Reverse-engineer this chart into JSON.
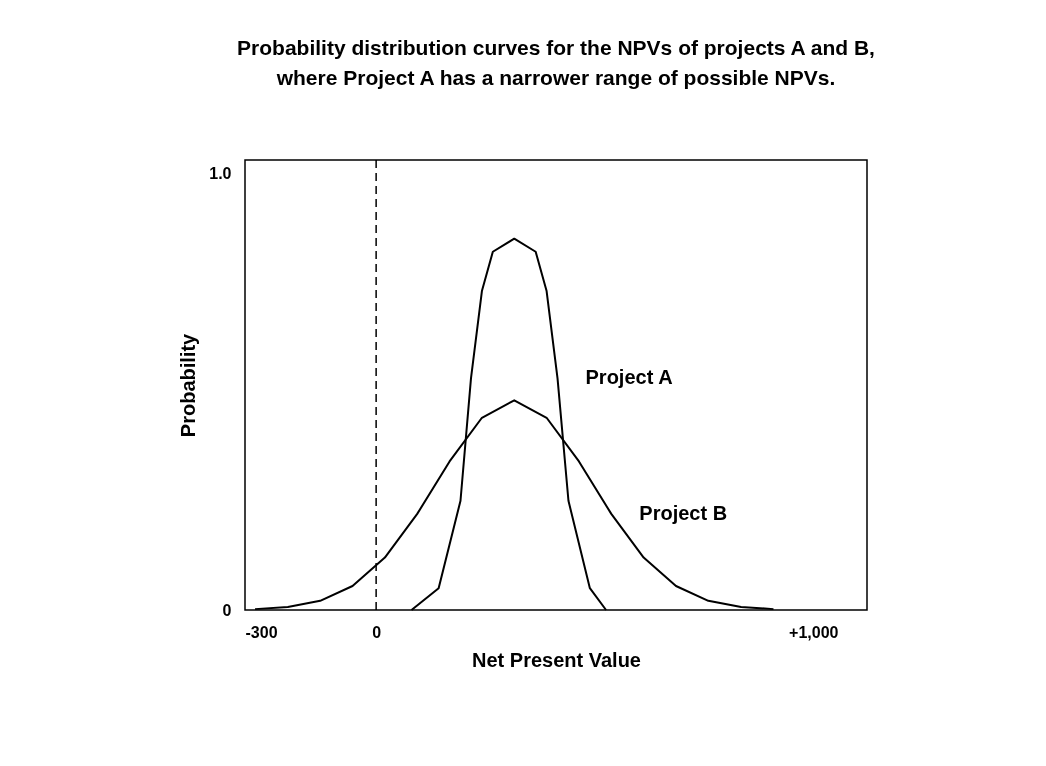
{
  "chart_data": {
    "type": "line",
    "title": "Probability distribution curves for the NPVs of projects A and B,\nwhere Project A has a narrower range of possible NPVs.",
    "xlabel": "Net Present Value",
    "ylabel": "Probability",
    "series": [
      {
        "name": "Project A",
        "color": "#000000",
        "x": [
          81,
          143,
          193,
          217,
          242,
          267,
          316,
          365,
          390,
          415,
          440,
          489,
          526
        ],
        "values": [
          0,
          0.05,
          0.25,
          0.53,
          0.73,
          0.82,
          0.85,
          0.82,
          0.73,
          0.53,
          0.25,
          0.05,
          0
        ]
      },
      {
        "name": "Project B",
        "color": "#000000",
        "x": [
          -277,
          -202,
          -128,
          -54,
          20,
          94,
          168,
          242,
          316,
          390,
          464,
          538,
          612,
          686,
          760,
          835,
          909
        ],
        "values": [
          0.002,
          0.007,
          0.021,
          0.055,
          0.12,
          0.22,
          0.34,
          0.44,
          0.48,
          0.44,
          0.34,
          0.22,
          0.12,
          0.055,
          0.021,
          0.007,
          0.002
        ]
      }
    ],
    "ref_lines": [
      {
        "axis": "x",
        "value": 0,
        "line_style": "dashed"
      }
    ],
    "xlim": [
      -300,
      1123
    ],
    "xticks": [
      {
        "value": -300,
        "label": "-300"
      },
      0,
      {
        "value": 1000,
        "label": "+1,000"
      }
    ],
    "ylim": [
      0,
      1.03
    ],
    "yticks": [
      0,
      {
        "value": 1,
        "label": "1.0"
      }
    ],
    "grid": false,
    "line_style": "solid",
    "marker": "none"
  }
}
